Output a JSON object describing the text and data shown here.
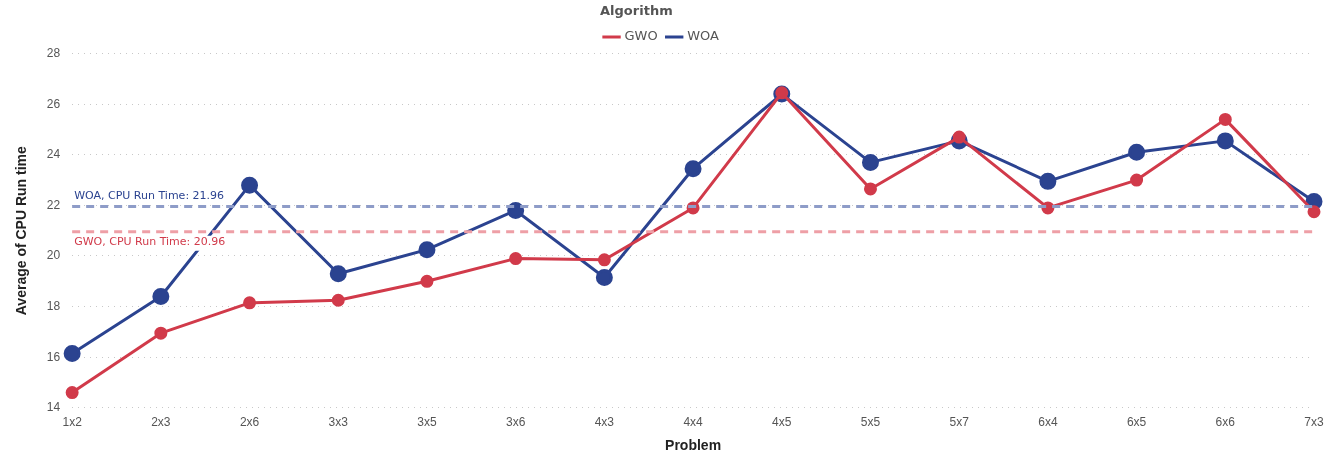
{
  "chart_data": {
    "type": "line",
    "xlabel": "Problem",
    "ylabel": "Average of CPU Run time",
    "legend_title": "Algorithm",
    "legend": "top",
    "categories": [
      "1x2",
      "2x3",
      "2x6",
      "3x3",
      "3x5",
      "3x6",
      "4x3",
      "4x4",
      "4x5",
      "5x5",
      "5x7",
      "6x4",
      "6x5",
      "6x6",
      "7x3"
    ],
    "series": [
      {
        "name": "GWO",
        "color": "#d13a4a",
        "values": [
          14.6,
          16.95,
          18.15,
          18.25,
          19.0,
          19.9,
          19.85,
          21.9,
          26.45,
          22.65,
          24.7,
          21.9,
          23.0,
          25.4,
          21.75
        ]
      },
      {
        "name": "WOA",
        "color": "#2b4390",
        "values": [
          16.15,
          18.4,
          22.8,
          19.3,
          20.25,
          21.8,
          19.15,
          23.45,
          26.4,
          23.7,
          24.55,
          22.95,
          24.1,
          24.55,
          22.15
        ]
      }
    ],
    "ylim": [
      14,
      28
    ],
    "yticks": [
      14,
      16,
      18,
      20,
      22,
      24,
      26,
      28
    ],
    "grid": "y",
    "marker": "circle",
    "line_style": "solid",
    "ref_lines": [
      {
        "axis": "y",
        "value": 21.96,
        "label": "WOA, CPU Run Time: 21.96",
        "color": "#8e9cc8",
        "line_style": "dashed"
      },
      {
        "axis": "y",
        "value": 20.96,
        "label": "GWO, CPU Run Time: 20.96",
        "color": "#ee9fa6",
        "line_style": "dashed"
      }
    ]
  }
}
